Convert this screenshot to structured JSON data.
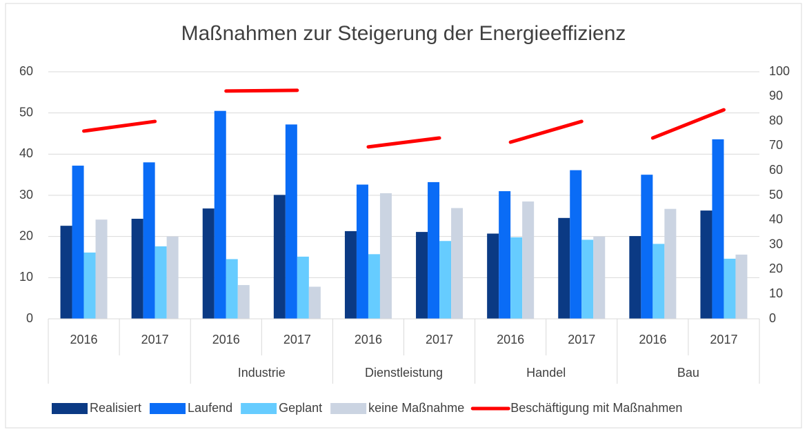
{
  "chart_data": {
    "type": "bar",
    "title": "Maßnahmen zur Steigerung der Energieeffizienz",
    "categories": [
      "2016",
      "2017",
      "2016",
      "2017",
      "2016",
      "2017",
      "2016",
      "2017",
      "2016",
      "2017"
    ],
    "group_labels": [
      null,
      "Industrie",
      "Dienstleistung",
      "Handel",
      "Bau"
    ],
    "series": [
      {
        "name": "Realisiert",
        "color": "#0b3a84",
        "values": [
          22.6,
          24.3,
          26.8,
          30.1,
          21.3,
          21.1,
          20.7,
          24.5,
          20.1,
          26.3
        ]
      },
      {
        "name": "Laufend",
        "color": "#0a6cf6",
        "values": [
          37.2,
          38.0,
          50.5,
          47.2,
          32.6,
          33.2,
          31.0,
          36.1,
          35.0,
          43.6
        ]
      },
      {
        "name": "Geplant",
        "color": "#66ccff",
        "values": [
          16.1,
          17.6,
          14.5,
          15.1,
          15.7,
          18.9,
          19.8,
          19.2,
          18.2,
          14.6
        ]
      },
      {
        "name": "keine Maßnahme",
        "color": "#cbd4e2",
        "values": [
          24.1,
          20.0,
          8.2,
          7.8,
          30.5,
          26.9,
          28.5,
          20.0,
          26.7,
          15.6
        ]
      },
      {
        "name": "Beschäftigung mit Maßnahmen",
        "color": "#ff0000",
        "type": "line",
        "axis": "y2",
        "values": [
          76.0,
          79.9,
          92.2,
          92.5,
          69.6,
          73.2,
          71.5,
          79.9,
          73.2,
          84.6
        ]
      }
    ],
    "ylim": [
      0,
      60
    ],
    "yticks": [
      0,
      10,
      20,
      30,
      40,
      50,
      60
    ],
    "y2lim": [
      0,
      100
    ],
    "y2ticks": [
      0,
      10,
      20,
      30,
      40,
      50,
      60,
      70,
      80,
      90,
      100
    ],
    "grid": true,
    "legend": "bottom"
  }
}
